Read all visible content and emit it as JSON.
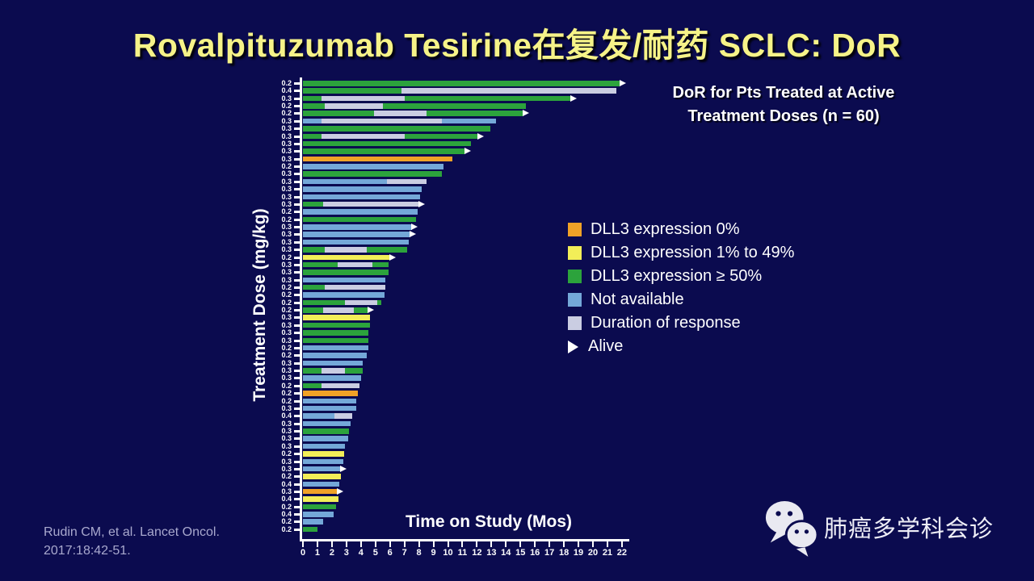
{
  "slide": {
    "title": "Rovalpituzumab Tesirine在复发/耐药 SCLC: DoR",
    "heading_line1": "DoR for Pts Treated at Active",
    "heading_line2": "Treatment Doses (n = 60)",
    "citation_line1": "Rudin CM, et al. Lancet Oncol.",
    "citation_line2": "2017:18:42-51.",
    "wechat_label": "肺癌多学科会诊"
  },
  "chart_data": {
    "type": "bar",
    "orientation": "horizontal-swimmer",
    "title": "DoR for Pts Treated at Active Treatment Doses (n = 60)",
    "xlabel": "Time on Study (Mos)",
    "ylabel": "Treatment Dose (mg/kg)",
    "xlim": [
      0,
      22
    ],
    "x_ticks": [
      0,
      1,
      2,
      3,
      4,
      5,
      6,
      7,
      8,
      9,
      10,
      11,
      12,
      13,
      14,
      15,
      16,
      17,
      18,
      19,
      20,
      21,
      22
    ],
    "grid": false,
    "colors": {
      "orange": "#F0A227",
      "yellow": "#F2EE58",
      "green": "#2CA33C",
      "blue": "#74A8D8",
      "gray": "#CACDE2",
      "background": "#0B0B4F",
      "title": "#F6F388",
      "axis": "#FFFFFF"
    },
    "legend": [
      {
        "key": "orange",
        "label": "DLL3 expression 0%",
        "marker": "square"
      },
      {
        "key": "yellow",
        "label": "DLL3 expression 1% to 49%",
        "marker": "square"
      },
      {
        "key": "green",
        "label": "DLL3 expression ≥ 50%",
        "marker": "square"
      },
      {
        "key": "blue",
        "label": "Not available",
        "marker": "square"
      },
      {
        "key": "gray",
        "label": "Duration of response",
        "marker": "square"
      },
      {
        "key": "alive",
        "label": "Alive",
        "marker": "triangle"
      }
    ],
    "rows": [
      {
        "dose": "0.2",
        "segments": [
          {
            "c": "green",
            "s": 0,
            "e": 21.9
          }
        ],
        "alive": true
      },
      {
        "dose": "0.4",
        "segments": [
          {
            "c": "green",
            "s": 0,
            "e": 6.8
          },
          {
            "c": "gray",
            "s": 6.8,
            "e": 21.6
          }
        ],
        "alive": false
      },
      {
        "dose": "0.3",
        "segments": [
          {
            "c": "green",
            "s": 0,
            "e": 1.3
          },
          {
            "c": "gray",
            "s": 1.3,
            "e": 7.0
          },
          {
            "c": "green",
            "s": 7.0,
            "e": 18.5
          }
        ],
        "alive": true
      },
      {
        "dose": "0.2",
        "segments": [
          {
            "c": "green",
            "s": 0,
            "e": 1.5
          },
          {
            "c": "gray",
            "s": 1.5,
            "e": 5.5
          },
          {
            "c": "green",
            "s": 5.5,
            "e": 15.4
          }
        ],
        "alive": false
      },
      {
        "dose": "0.2",
        "segments": [
          {
            "c": "green",
            "s": 0,
            "e": 4.9
          },
          {
            "c": "gray",
            "s": 4.9,
            "e": 8.5
          },
          {
            "c": "green",
            "s": 8.5,
            "e": 15.2
          }
        ],
        "alive": true
      },
      {
        "dose": "0.3",
        "segments": [
          {
            "c": "blue",
            "s": 0,
            "e": 1.3
          },
          {
            "c": "gray",
            "s": 1.3,
            "e": 9.6
          },
          {
            "c": "blue",
            "s": 9.6,
            "e": 13.3
          }
        ],
        "alive": false
      },
      {
        "dose": "0.3",
        "segments": [
          {
            "c": "green",
            "s": 0,
            "e": 12.9
          }
        ],
        "alive": false
      },
      {
        "dose": "0.3",
        "segments": [
          {
            "c": "green",
            "s": 0,
            "e": 1.3
          },
          {
            "c": "gray",
            "s": 1.3,
            "e": 7.0
          },
          {
            "c": "green",
            "s": 7.0,
            "e": 12.1
          }
        ],
        "alive": true
      },
      {
        "dose": "0.3",
        "segments": [
          {
            "c": "green",
            "s": 0,
            "e": 11.6
          }
        ],
        "alive": false
      },
      {
        "dose": "0.3",
        "segments": [
          {
            "c": "green",
            "s": 0,
            "e": 11.2
          }
        ],
        "alive": true
      },
      {
        "dose": "0.3",
        "segments": [
          {
            "c": "orange",
            "s": 0,
            "e": 10.3
          }
        ],
        "alive": false
      },
      {
        "dose": "0.2",
        "segments": [
          {
            "c": "blue",
            "s": 0,
            "e": 9.7
          }
        ],
        "alive": false
      },
      {
        "dose": "0.3",
        "segments": [
          {
            "c": "green",
            "s": 0,
            "e": 9.6
          }
        ],
        "alive": false
      },
      {
        "dose": "0.3",
        "segments": [
          {
            "c": "blue",
            "s": 0,
            "e": 5.8
          },
          {
            "c": "gray",
            "s": 5.8,
            "e": 8.5
          }
        ],
        "alive": false
      },
      {
        "dose": "0.3",
        "segments": [
          {
            "c": "blue",
            "s": 0,
            "e": 8.2
          }
        ],
        "alive": false
      },
      {
        "dose": "0.3",
        "segments": [
          {
            "c": "blue",
            "s": 0,
            "e": 8.1
          }
        ],
        "alive": false
      },
      {
        "dose": "0.3",
        "segments": [
          {
            "c": "green",
            "s": 0,
            "e": 1.4
          },
          {
            "c": "gray",
            "s": 1.4,
            "e": 8.0
          }
        ],
        "alive": true
      },
      {
        "dose": "0.2",
        "segments": [
          {
            "c": "blue",
            "s": 0,
            "e": 7.9
          }
        ],
        "alive": false
      },
      {
        "dose": "0.2",
        "segments": [
          {
            "c": "green",
            "s": 0,
            "e": 7.8
          }
        ],
        "alive": false
      },
      {
        "dose": "0.3",
        "segments": [
          {
            "c": "blue",
            "s": 0,
            "e": 7.5
          }
        ],
        "alive": true
      },
      {
        "dose": "0.3",
        "segments": [
          {
            "c": "blue",
            "s": 0,
            "e": 7.4
          }
        ],
        "alive": true
      },
      {
        "dose": "0.3",
        "segments": [
          {
            "c": "blue",
            "s": 0,
            "e": 7.3
          }
        ],
        "alive": false
      },
      {
        "dose": "0.3",
        "segments": [
          {
            "c": "green",
            "s": 0,
            "e": 1.5
          },
          {
            "c": "gray",
            "s": 1.5,
            "e": 4.4
          },
          {
            "c": "green",
            "s": 4.4,
            "e": 7.2
          }
        ],
        "alive": false
      },
      {
        "dose": "0.2",
        "segments": [
          {
            "c": "yellow",
            "s": 0,
            "e": 6.0
          }
        ],
        "alive": true
      },
      {
        "dose": "0.3",
        "segments": [
          {
            "c": "green",
            "s": 0,
            "e": 2.4
          },
          {
            "c": "gray",
            "s": 2.4,
            "e": 4.8
          },
          {
            "c": "green",
            "s": 4.8,
            "e": 5.9
          }
        ],
        "alive": false
      },
      {
        "dose": "0.3",
        "segments": [
          {
            "c": "green",
            "s": 0,
            "e": 5.9
          }
        ],
        "alive": false
      },
      {
        "dose": "0.3",
        "segments": [
          {
            "c": "blue",
            "s": 0,
            "e": 5.7
          }
        ],
        "alive": false
      },
      {
        "dose": "0.2",
        "segments": [
          {
            "c": "green",
            "s": 0,
            "e": 1.5
          },
          {
            "c": "gray",
            "s": 1.5,
            "e": 5.7
          }
        ],
        "alive": false
      },
      {
        "dose": "0.2",
        "segments": [
          {
            "c": "blue",
            "s": 0,
            "e": 5.6
          }
        ],
        "alive": false
      },
      {
        "dose": "0.2",
        "segments": [
          {
            "c": "green",
            "s": 0,
            "e": 2.9
          },
          {
            "c": "gray",
            "s": 2.9,
            "e": 5.1
          },
          {
            "c": "green",
            "s": 5.1,
            "e": 5.4
          }
        ],
        "alive": false
      },
      {
        "dose": "0.2",
        "segments": [
          {
            "c": "green",
            "s": 0,
            "e": 1.4
          },
          {
            "c": "gray",
            "s": 1.4,
            "e": 3.5
          },
          {
            "c": "green",
            "s": 3.5,
            "e": 4.5
          }
        ],
        "alive": true
      },
      {
        "dose": "0.3",
        "segments": [
          {
            "c": "yellow",
            "s": 0,
            "e": 4.6
          }
        ],
        "alive": false
      },
      {
        "dose": "0.3",
        "segments": [
          {
            "c": "green",
            "s": 0,
            "e": 4.6
          }
        ],
        "alive": false
      },
      {
        "dose": "0.3",
        "segments": [
          {
            "c": "green",
            "s": 0,
            "e": 4.5
          }
        ],
        "alive": false
      },
      {
        "dose": "0.3",
        "segments": [
          {
            "c": "green",
            "s": 0,
            "e": 4.5
          }
        ],
        "alive": false
      },
      {
        "dose": "0.2",
        "segments": [
          {
            "c": "blue",
            "s": 0,
            "e": 4.5
          }
        ],
        "alive": false
      },
      {
        "dose": "0.2",
        "segments": [
          {
            "c": "blue",
            "s": 0,
            "e": 4.4
          }
        ],
        "alive": false
      },
      {
        "dose": "0.3",
        "segments": [
          {
            "c": "blue",
            "s": 0,
            "e": 4.1
          }
        ],
        "alive": false
      },
      {
        "dose": "0.3",
        "segments": [
          {
            "c": "green",
            "s": 0,
            "e": 1.3
          },
          {
            "c": "gray",
            "s": 1.3,
            "e": 2.9
          },
          {
            "c": "green",
            "s": 2.9,
            "e": 4.1
          }
        ],
        "alive": false
      },
      {
        "dose": "0.3",
        "segments": [
          {
            "c": "blue",
            "s": 0,
            "e": 4.0
          }
        ],
        "alive": false
      },
      {
        "dose": "0.2",
        "segments": [
          {
            "c": "green",
            "s": 0,
            "e": 1.3
          },
          {
            "c": "gray",
            "s": 1.3,
            "e": 3.9
          }
        ],
        "alive": false
      },
      {
        "dose": "0.2",
        "segments": [
          {
            "c": "orange",
            "s": 0,
            "e": 3.8
          }
        ],
        "alive": false
      },
      {
        "dose": "0.2",
        "segments": [
          {
            "c": "blue",
            "s": 0,
            "e": 3.7
          }
        ],
        "alive": false
      },
      {
        "dose": "0.3",
        "segments": [
          {
            "c": "blue",
            "s": 0,
            "e": 3.7
          }
        ],
        "alive": false
      },
      {
        "dose": "0.4",
        "segments": [
          {
            "c": "blue",
            "s": 0,
            "e": 2.2
          },
          {
            "c": "gray",
            "s": 2.2,
            "e": 3.4
          }
        ],
        "alive": false
      },
      {
        "dose": "0.3",
        "segments": [
          {
            "c": "blue",
            "s": 0,
            "e": 3.3
          }
        ],
        "alive": false
      },
      {
        "dose": "0.3",
        "segments": [
          {
            "c": "green",
            "s": 0,
            "e": 3.2
          }
        ],
        "alive": false
      },
      {
        "dose": "0.3",
        "segments": [
          {
            "c": "blue",
            "s": 0,
            "e": 3.1
          }
        ],
        "alive": false
      },
      {
        "dose": "0.3",
        "segments": [
          {
            "c": "blue",
            "s": 0,
            "e": 2.9
          }
        ],
        "alive": false
      },
      {
        "dose": "0.2",
        "segments": [
          {
            "c": "yellow",
            "s": 0,
            "e": 2.85
          }
        ],
        "alive": false
      },
      {
        "dose": "0.3",
        "segments": [
          {
            "c": "blue",
            "s": 0,
            "e": 2.8
          }
        ],
        "alive": false
      },
      {
        "dose": "0.3",
        "segments": [
          {
            "c": "blue",
            "s": 0,
            "e": 2.6
          }
        ],
        "alive": true
      },
      {
        "dose": "0.2",
        "segments": [
          {
            "c": "yellow",
            "s": 0,
            "e": 2.6
          }
        ],
        "alive": false
      },
      {
        "dose": "0.4",
        "segments": [
          {
            "c": "blue",
            "s": 0,
            "e": 2.5
          }
        ],
        "alive": false
      },
      {
        "dose": "0.3",
        "segments": [
          {
            "c": "orange",
            "s": 0,
            "e": 2.4
          }
        ],
        "alive": true
      },
      {
        "dose": "0.4",
        "segments": [
          {
            "c": "yellow",
            "s": 0,
            "e": 2.45
          }
        ],
        "alive": false
      },
      {
        "dose": "0.2",
        "segments": [
          {
            "c": "green",
            "s": 0,
            "e": 2.3
          }
        ],
        "alive": false
      },
      {
        "dose": "0.4",
        "segments": [
          {
            "c": "blue",
            "s": 0,
            "e": 2.1
          }
        ],
        "alive": false
      },
      {
        "dose": "0.2",
        "segments": [
          {
            "c": "blue",
            "s": 0,
            "e": 1.4
          }
        ],
        "alive": false
      },
      {
        "dose": "0.2",
        "segments": [
          {
            "c": "green",
            "s": 0,
            "e": 1.0
          }
        ],
        "alive": false
      }
    ]
  }
}
